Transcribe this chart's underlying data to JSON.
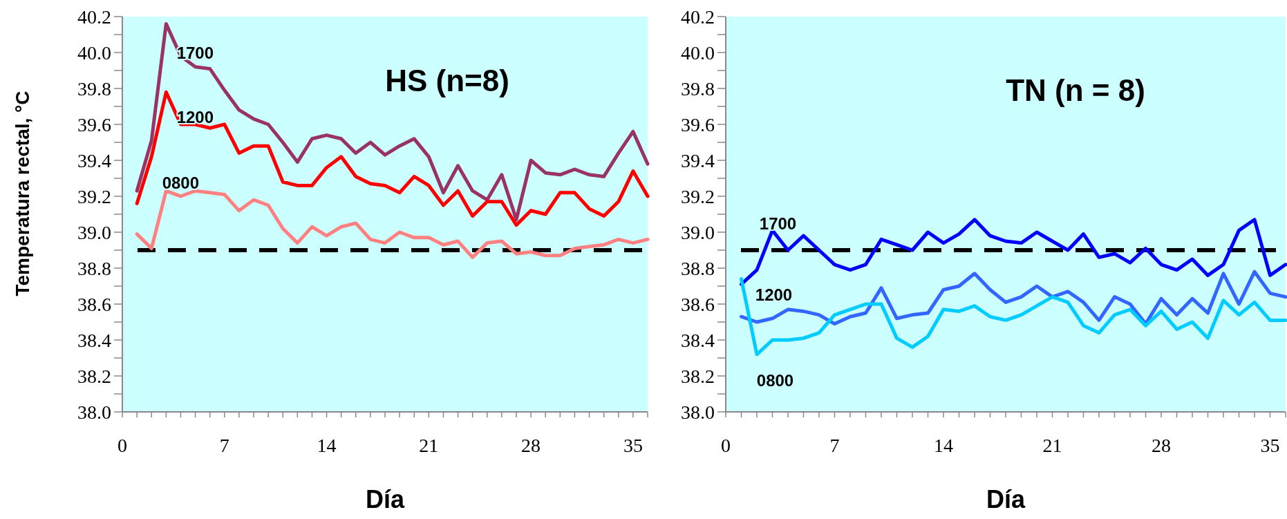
{
  "chart_data": [
    {
      "type": "line",
      "title": "HS (n=8)",
      "xlabel": "Día",
      "ylabel": "Temperatura rectal, °C",
      "x": [
        1,
        2,
        3,
        4,
        5,
        6,
        7,
        8,
        9,
        10,
        11,
        12,
        13,
        14,
        15,
        16,
        17,
        18,
        19,
        20,
        21,
        22,
        23,
        24,
        25,
        26,
        27,
        28,
        29,
        30,
        31,
        32,
        33,
        34,
        35,
        36
      ],
      "series": [
        {
          "name": "1700",
          "color": "#993366",
          "values": [
            39.23,
            39.51,
            40.16,
            39.98,
            39.92,
            39.91,
            39.79,
            39.68,
            39.63,
            39.6,
            39.5,
            39.39,
            39.52,
            39.54,
            39.52,
            39.44,
            39.5,
            39.43,
            39.48,
            39.52,
            39.42,
            39.22,
            39.37,
            39.23,
            39.18,
            39.32,
            39.07,
            39.4,
            39.33,
            39.32,
            39.35,
            39.32,
            39.31,
            39.44,
            39.56,
            39.38
          ]
        },
        {
          "name": "1200",
          "color": "#ff0000",
          "values": [
            39.16,
            39.42,
            39.78,
            39.6,
            39.6,
            39.58,
            39.6,
            39.44,
            39.48,
            39.48,
            39.28,
            39.26,
            39.26,
            39.36,
            39.42,
            39.31,
            39.27,
            39.26,
            39.22,
            39.31,
            39.26,
            39.15,
            39.23,
            39.09,
            39.17,
            39.17,
            39.04,
            39.12,
            39.1,
            39.22,
            39.22,
            39.13,
            39.09,
            39.17,
            39.34,
            39.2
          ]
        },
        {
          "name": "0800",
          "color": "#ff8080",
          "values": [
            38.99,
            38.91,
            39.23,
            39.2,
            39.23,
            39.22,
            39.21,
            39.12,
            39.18,
            39.15,
            39.02,
            38.94,
            39.03,
            38.98,
            39.03,
            39.05,
            38.96,
            38.94,
            39.0,
            38.97,
            38.97,
            38.93,
            38.95,
            38.86,
            38.94,
            38.95,
            38.88,
            38.89,
            38.87,
            38.87,
            38.91,
            38.92,
            38.93,
            38.96,
            38.94,
            38.96
          ]
        }
      ],
      "xlim": [
        0,
        36
      ],
      "xticks": [
        0,
        {
          "value": 1,
          "label": null
        },
        {
          "value": 2,
          "label": null
        },
        {
          "value": 3,
          "label": null
        },
        {
          "value": 4,
          "label": null
        },
        {
          "value": 5,
          "label": null
        },
        {
          "value": 6,
          "label": null
        },
        7,
        {
          "value": 8,
          "label": null
        },
        {
          "value": 9,
          "label": null
        },
        {
          "value": 10,
          "label": null
        },
        {
          "value": 11,
          "label": null
        },
        {
          "value": 12,
          "label": null
        },
        {
          "value": 13,
          "label": null
        },
        14,
        {
          "value": 15,
          "label": null
        },
        {
          "value": 16,
          "label": null
        },
        {
          "value": 17,
          "label": null
        },
        {
          "value": 18,
          "label": null
        },
        {
          "value": 19,
          "label": null
        },
        {
          "value": 20,
          "label": null
        },
        21,
        {
          "value": 22,
          "label": null
        },
        {
          "value": 23,
          "label": null
        },
        {
          "value": 24,
          "label": null
        },
        {
          "value": 25,
          "label": null
        },
        {
          "value": 26,
          "label": null
        },
        {
          "value": 27,
          "label": null
        },
        28,
        {
          "value": 29,
          "label": null
        },
        {
          "value": 30,
          "label": null
        },
        {
          "value": 31,
          "label": null
        },
        {
          "value": 32,
          "label": null
        },
        {
          "value": 33,
          "label": null
        },
        {
          "value": 34,
          "label": null
        },
        35,
        {
          "value": 36,
          "label": null
        }
      ],
      "ylim": [
        38.0,
        40.2
      ],
      "yticks": [
        {
          "value": 38.0,
          "label": "38.0"
        },
        {
          "value": 38.1,
          "label": null
        },
        {
          "value": 38.2,
          "label": "38.2"
        },
        {
          "value": 38.3,
          "label": null
        },
        {
          "value": 38.4,
          "label": "38.4"
        },
        {
          "value": 38.5,
          "label": null
        },
        {
          "value": 38.6,
          "label": "38.6"
        },
        {
          "value": 38.7,
          "label": null
        },
        {
          "value": 38.8,
          "label": "38.8"
        },
        {
          "value": 38.9,
          "label": null
        },
        {
          "value": 39.0,
          "label": "39.0"
        },
        {
          "value": 39.1,
          "label": null
        },
        {
          "value": 39.2,
          "label": "39.2"
        },
        {
          "value": 39.3,
          "label": null
        },
        {
          "value": 39.4,
          "label": "39.4"
        },
        {
          "value": 39.5,
          "label": null
        },
        {
          "value": 39.6,
          "label": "39.6"
        },
        {
          "value": 39.7,
          "label": null
        },
        {
          "value": 39.8,
          "label": "39.8"
        },
        {
          "value": 39.9,
          "label": null
        },
        {
          "value": 40.0,
          "label": "40.0"
        },
        {
          "value": 40.1,
          "label": null
        },
        {
          "value": 40.2,
          "label": "40.2"
        }
      ],
      "ref_lines": [
        {
          "axis": "y",
          "value": 38.9,
          "color": "#000000",
          "line_style": "dashed"
        }
      ],
      "grid": false,
      "legend": false,
      "marker": "none",
      "line_style": "solid"
    },
    {
      "type": "line",
      "title": "TN (n = 8)",
      "xlabel": "Día",
      "x": [
        1,
        2,
        3,
        4,
        5,
        6,
        7,
        8,
        9,
        10,
        11,
        12,
        13,
        14,
        15,
        16,
        17,
        18,
        19,
        20,
        21,
        22,
        23,
        24,
        25,
        26,
        27,
        28,
        29,
        30,
        31,
        32,
        33,
        34,
        35,
        36
      ],
      "series": [
        {
          "name": "1700",
          "color": "#0000ff",
          "values": [
            38.71,
            38.79,
            39.01,
            38.9,
            38.98,
            38.9,
            38.82,
            38.79,
            38.82,
            38.96,
            38.93,
            38.9,
            39.0,
            38.94,
            38.99,
            39.07,
            38.98,
            38.95,
            38.94,
            39.0,
            38.95,
            38.9,
            38.99,
            38.86,
            38.88,
            38.83,
            38.91,
            38.82,
            38.79,
            38.85,
            38.76,
            38.82,
            39.01,
            39.07,
            38.76,
            38.82
          ]
        },
        {
          "name": "1200",
          "color": "#3366ff",
          "values": [
            38.53,
            38.5,
            38.52,
            38.57,
            38.56,
            38.54,
            38.49,
            38.53,
            38.55,
            38.69,
            38.52,
            38.54,
            38.55,
            38.68,
            38.7,
            38.77,
            38.68,
            38.61,
            38.64,
            38.7,
            38.64,
            38.67,
            38.61,
            38.51,
            38.64,
            38.6,
            38.49,
            38.63,
            38.54,
            38.63,
            38.55,
            38.77,
            38.6,
            38.78,
            38.66,
            38.64
          ]
        },
        {
          "name": "0800",
          "color": "#00ccff",
          "values": [
            38.74,
            38.32,
            38.4,
            38.4,
            38.41,
            38.44,
            38.54,
            38.57,
            38.6,
            38.6,
            38.41,
            38.36,
            38.42,
            38.57,
            38.56,
            38.59,
            38.53,
            38.51,
            38.54,
            38.59,
            38.64,
            38.61,
            38.48,
            38.44,
            38.54,
            38.57,
            38.48,
            38.56,
            38.46,
            38.5,
            38.41,
            38.62,
            38.54,
            38.61,
            38.51,
            38.51
          ]
        }
      ],
      "xlim": [
        0,
        36
      ],
      "xticks": [
        0,
        {
          "value": 1,
          "label": null
        },
        {
          "value": 2,
          "label": null
        },
        {
          "value": 3,
          "label": null
        },
        {
          "value": 4,
          "label": null
        },
        {
          "value": 5,
          "label": null
        },
        {
          "value": 6,
          "label": null
        },
        7,
        {
          "value": 8,
          "label": null
        },
        {
          "value": 9,
          "label": null
        },
        {
          "value": 10,
          "label": null
        },
        {
          "value": 11,
          "label": null
        },
        {
          "value": 12,
          "label": null
        },
        {
          "value": 13,
          "label": null
        },
        14,
        {
          "value": 15,
          "label": null
        },
        {
          "value": 16,
          "label": null
        },
        {
          "value": 17,
          "label": null
        },
        {
          "value": 18,
          "label": null
        },
        {
          "value": 19,
          "label": null
        },
        {
          "value": 20,
          "label": null
        },
        21,
        {
          "value": 22,
          "label": null
        },
        {
          "value": 23,
          "label": null
        },
        {
          "value": 24,
          "label": null
        },
        {
          "value": 25,
          "label": null
        },
        {
          "value": 26,
          "label": null
        },
        {
          "value": 27,
          "label": null
        },
        28,
        {
          "value": 29,
          "label": null
        },
        {
          "value": 30,
          "label": null
        },
        {
          "value": 31,
          "label": null
        },
        {
          "value": 32,
          "label": null
        },
        {
          "value": 33,
          "label": null
        },
        {
          "value": 34,
          "label": null
        },
        35,
        {
          "value": 36,
          "label": null
        }
      ],
      "ylim": [
        38.0,
        40.2
      ],
      "yticks": [
        {
          "value": 38.0,
          "label": "38.0"
        },
        {
          "value": 38.1,
          "label": null
        },
        {
          "value": 38.2,
          "label": "38.2"
        },
        {
          "value": 38.3,
          "label": null
        },
        {
          "value": 38.4,
          "label": "38.4"
        },
        {
          "value": 38.5,
          "label": null
        },
        {
          "value": 38.6,
          "label": "38.6"
        },
        {
          "value": 38.7,
          "label": null
        },
        {
          "value": 38.8,
          "label": "38.8"
        },
        {
          "value": 38.9,
          "label": null
        },
        {
          "value": 39.0,
          "label": "39.0"
        },
        {
          "value": 39.1,
          "label": null
        },
        {
          "value": 39.2,
          "label": "39.2"
        },
        {
          "value": 39.3,
          "label": null
        },
        {
          "value": 39.4,
          "label": "39.4"
        },
        {
          "value": 39.5,
          "label": null
        },
        {
          "value": 39.6,
          "label": "39.6"
        },
        {
          "value": 39.7,
          "label": null
        },
        {
          "value": 39.8,
          "label": "39.8"
        },
        {
          "value": 39.9,
          "label": null
        },
        {
          "value": 40.0,
          "label": "40.0"
        },
        {
          "value": 40.1,
          "label": null
        },
        {
          "value": 40.2,
          "label": "40.2"
        }
      ],
      "ref_lines": [
        {
          "axis": "y",
          "value": 38.9,
          "color": "#000000",
          "line_style": "dashed"
        }
      ],
      "grid": false,
      "legend": false,
      "marker": "none",
      "line_style": "solid"
    }
  ]
}
